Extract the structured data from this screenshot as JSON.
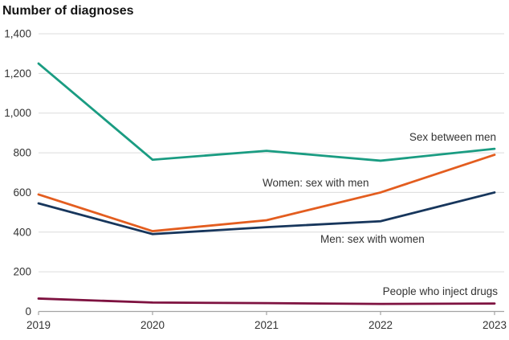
{
  "chart_data": {
    "type": "line",
    "title": "Number of diagnoses",
    "xlabel": "",
    "ylabel": "Number of diagnoses",
    "categories": [
      "2019",
      "2020",
      "2021",
      "2022",
      "2023"
    ],
    "series": [
      {
        "name": "Sex between men",
        "color": "#1a9c82",
        "values": [
          1250,
          765,
          810,
          760,
          820
        ]
      },
      {
        "name": "Women: sex with men",
        "color": "#e35d1f",
        "values": [
          590,
          405,
          460,
          600,
          790
        ]
      },
      {
        "name": "Men: sex with women",
        "color": "#17365c",
        "values": [
          545,
          390,
          425,
          455,
          600
        ]
      },
      {
        "name": "People who inject drugs",
        "color": "#7e1240",
        "values": [
          65,
          45,
          42,
          38,
          40
        ]
      }
    ],
    "ylim": [
      0,
      1400
    ],
    "y_ticks": [
      "0",
      "200",
      "400",
      "600",
      "800",
      "1,000",
      "1,200",
      "1,400"
    ],
    "grid": "horizontal",
    "legend": "inline-annotations",
    "colors": {
      "gridline": "#dcdcdc",
      "axis": "#a3a3a3",
      "tick_text": "#333333",
      "annotation_text": "#333333",
      "title_text": "#141414",
      "background": "#ffffff"
    }
  }
}
